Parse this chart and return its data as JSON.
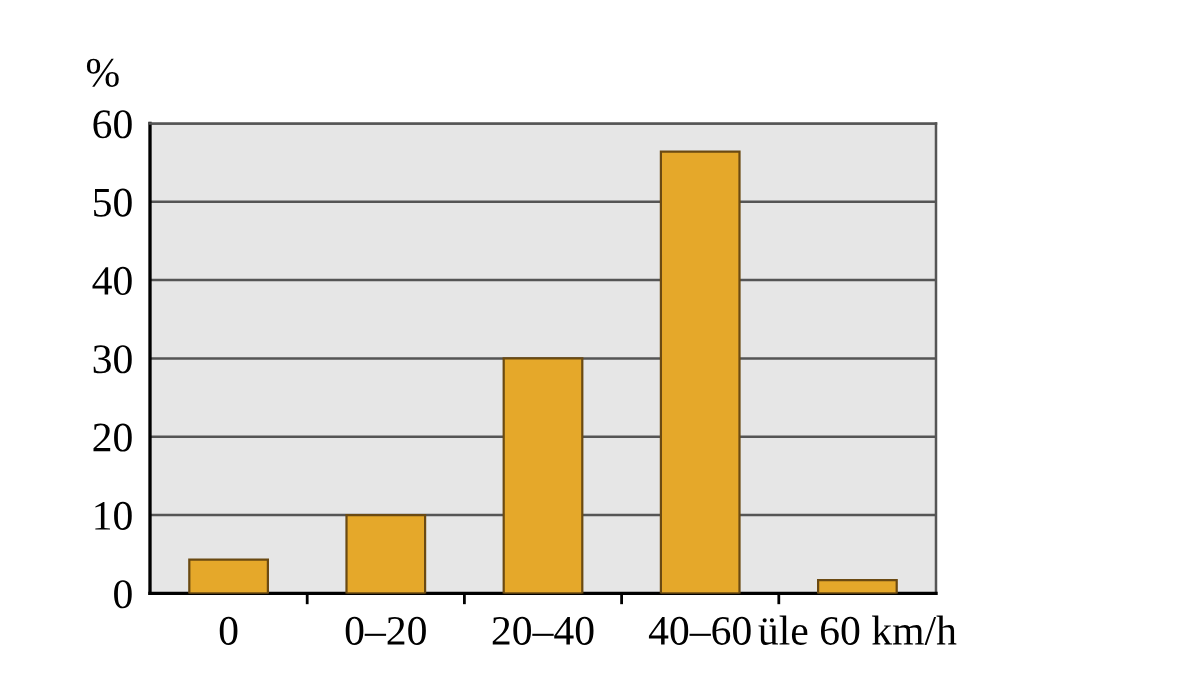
{
  "chart_data": {
    "type": "bar",
    "ylabel": "%",
    "categories": [
      "0",
      "0–20",
      "20–40",
      "40–60",
      "üle 60 km/h"
    ],
    "values": [
      4.3,
      10,
      30,
      56.4,
      1.7
    ],
    "color": "#e5a82a",
    "ylim": [
      0,
      60
    ],
    "yticks": [
      0,
      10,
      20,
      30,
      40,
      50,
      60
    ],
    "grid": "y"
  }
}
